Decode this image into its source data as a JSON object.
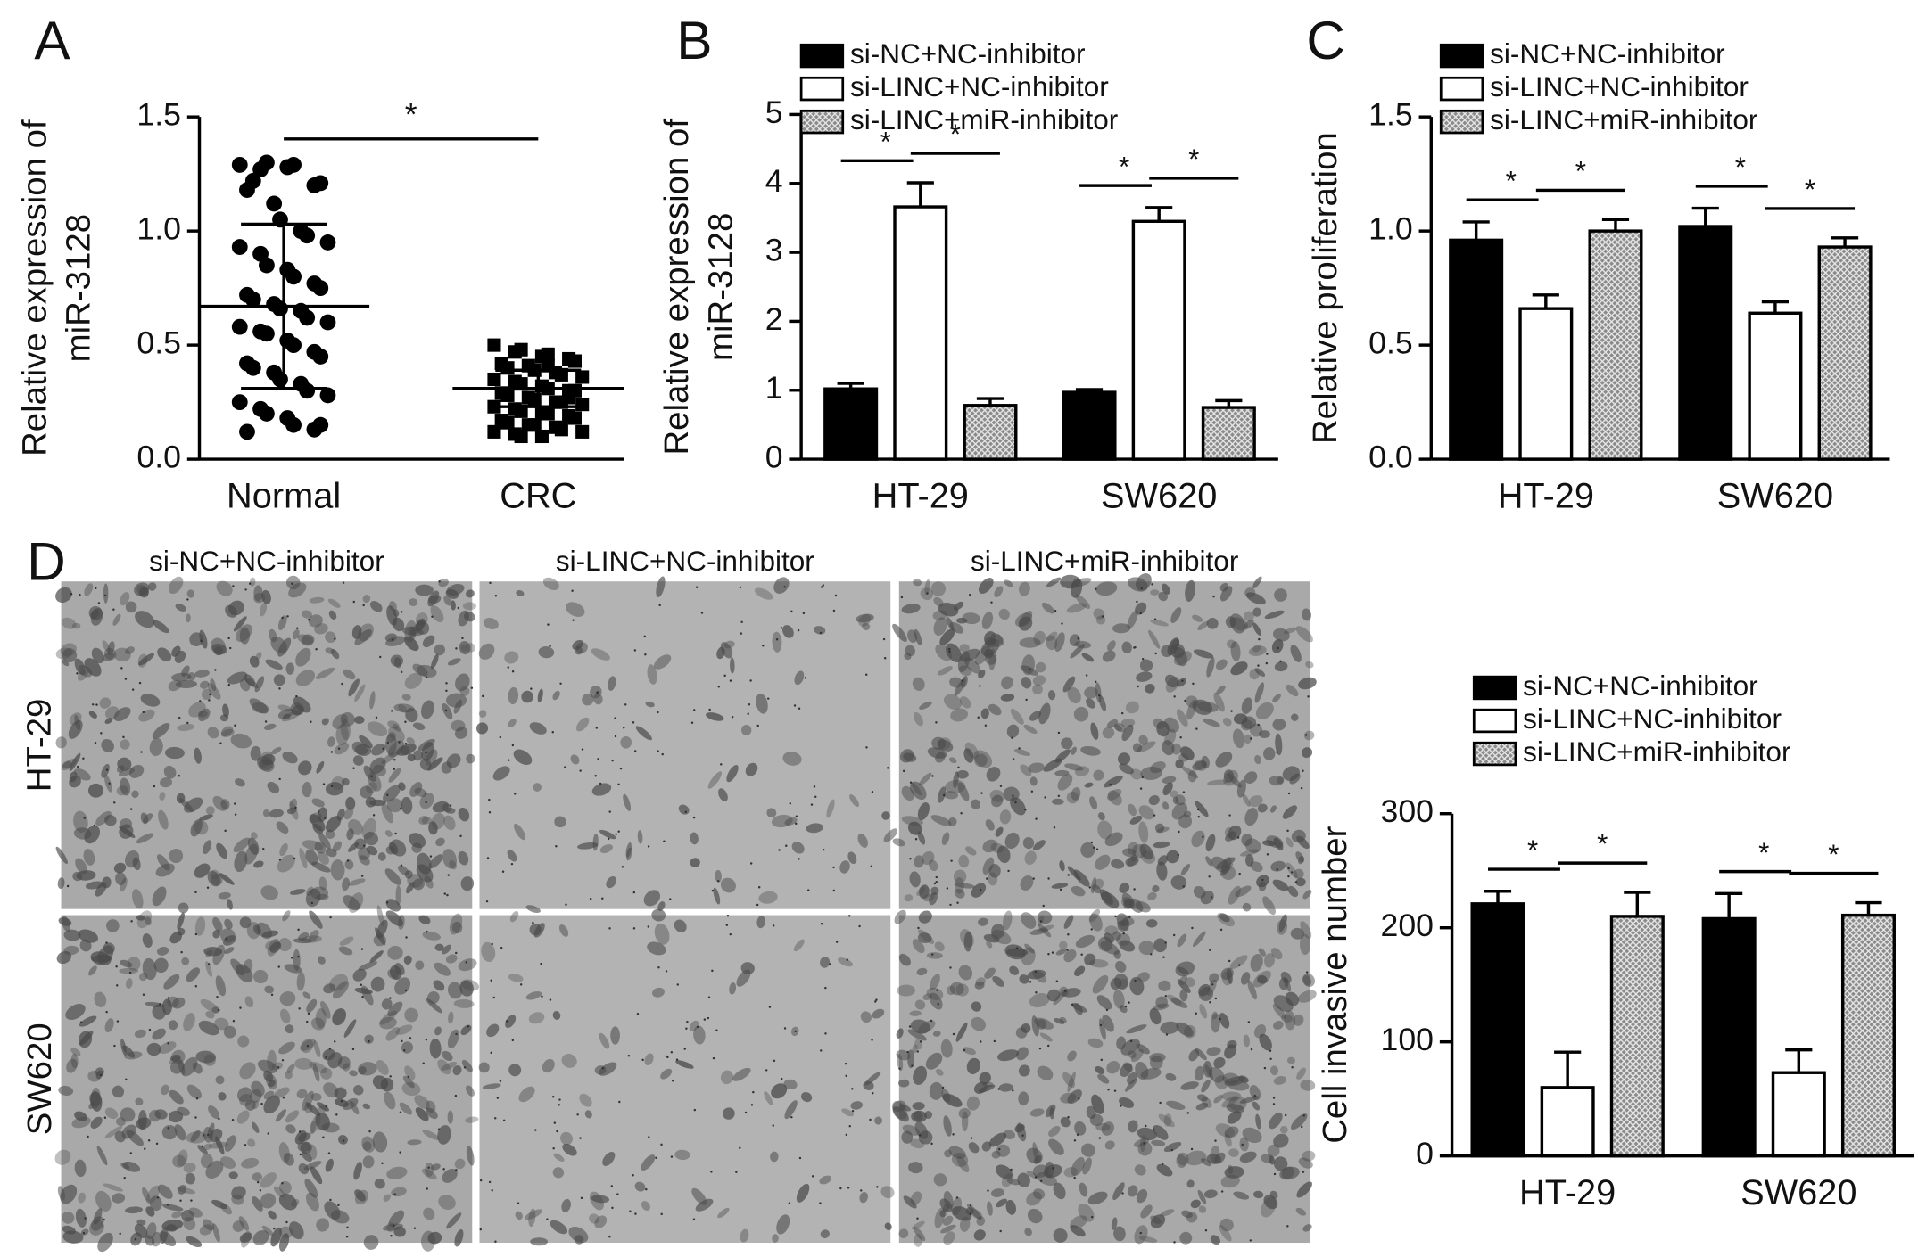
{
  "panel_labels": [
    "A",
    "B",
    "C",
    "D"
  ],
  "micrographs": {
    "columns": [
      "si-NC+NC-inhibitor",
      "si-LINC+NC-inhibitor",
      "si-LINC+miR-inhibitor"
    ],
    "rows": [
      "HT-29",
      "SW620"
    ]
  },
  "chart_data": [
    {
      "type": "dot_plot",
      "ylabel": [
        "Relative expression of",
        "miR-3128"
      ],
      "categories": [
        "Normal",
        "CRC"
      ],
      "markers": [
        "circle",
        "square"
      ],
      "color": "#000000",
      "values": [
        [
          1.29,
          1.27,
          1.3,
          1.28,
          1.29,
          1.2,
          1.21,
          1.18,
          1.22,
          1.12,
          1.05,
          1.0,
          0.98,
          0.95,
          0.93,
          0.9,
          0.85,
          0.83,
          0.8,
          0.77,
          0.75,
          0.72,
          0.7,
          0.68,
          0.66,
          0.65,
          0.62,
          0.6,
          0.58,
          0.56,
          0.55,
          0.52,
          0.5,
          0.47,
          0.45,
          0.42,
          0.4,
          0.38,
          0.35,
          0.33,
          0.3,
          0.28,
          0.25,
          0.22,
          0.2,
          0.18,
          0.15,
          0.13,
          0.15,
          0.12
        ],
        [
          0.5,
          0.47,
          0.48,
          0.45,
          0.46,
          0.44,
          0.43,
          0.42,
          0.4,
          0.41,
          0.39,
          0.38,
          0.37,
          0.36,
          0.35,
          0.34,
          0.33,
          0.32,
          0.31,
          0.3,
          0.3,
          0.29,
          0.28,
          0.27,
          0.26,
          0.25,
          0.25,
          0.24,
          0.23,
          0.22,
          0.21,
          0.2,
          0.2,
          0.19,
          0.18,
          0.17,
          0.16,
          0.15,
          0.15,
          0.14,
          0.13,
          0.12,
          0.12,
          0.11,
          0.1,
          0.1,
          0.41,
          0.27
        ]
      ],
      "mean": [
        0.67,
        0.31
      ],
      "sd": [
        0.36,
        0.08
      ],
      "ylim": [
        0,
        1.5
      ],
      "yticks": [
        {
          "value": 0,
          "label": "0.0"
        },
        {
          "value": 0.5,
          "label": "0.5"
        },
        {
          "value": 1,
          "label": "1.0"
        },
        {
          "value": 1.5,
          "label": "1.5"
        }
      ],
      "significance": [
        "*"
      ]
    },
    {
      "type": "bar",
      "ylabel": [
        "Relative expression of",
        "miR-3128"
      ],
      "categories": [
        "HT-29",
        "SW620"
      ],
      "series": [
        {
          "name": "si-NC+NC-inhibitor",
          "color": "#000000",
          "values": [
            1.02,
            0.97
          ],
          "errors": [
            0.08,
            0.04
          ]
        },
        {
          "name": "si-LINC+NC-inhibitor",
          "color": "#ffffff",
          "values": [
            3.66,
            3.45
          ],
          "errors": [
            0.35,
            0.2
          ]
        },
        {
          "name": "si-LINC+miR-inhibitor",
          "color": "#8a8a8a",
          "hatch": true,
          "values": [
            0.78,
            0.75
          ],
          "errors": [
            0.1,
            0.1
          ]
        }
      ],
      "ylim": [
        0,
        5
      ],
      "yticks": [
        0,
        1,
        2,
        3,
        4,
        5
      ],
      "significance": [
        "*",
        "*",
        "*",
        "*"
      ]
    },
    {
      "type": "bar",
      "ylabel": [
        "Relative proliferation"
      ],
      "categories": [
        "HT-29",
        "SW620"
      ],
      "series": [
        {
          "name": "si-NC+NC-inhibitor",
          "color": "#000000",
          "values": [
            0.96,
            1.02
          ],
          "errors": [
            0.08,
            0.08
          ]
        },
        {
          "name": "si-LINC+NC-inhibitor",
          "color": "#ffffff",
          "values": [
            0.66,
            0.64
          ],
          "errors": [
            0.06,
            0.05
          ]
        },
        {
          "name": "si-LINC+miR-inhibitor",
          "color": "#8a8a8a",
          "hatch": true,
          "values": [
            1.0,
            0.93
          ],
          "errors": [
            0.05,
            0.04
          ]
        }
      ],
      "ylim": [
        0,
        1.5
      ],
      "yticks": [
        {
          "value": 0,
          "label": "0.0"
        },
        {
          "value": 0.5,
          "label": "0.5"
        },
        {
          "value": 1,
          "label": "1.0"
        },
        {
          "value": 1.5,
          "label": "1.5"
        }
      ],
      "significance": [
        "*",
        "*",
        "*",
        "*"
      ]
    },
    {
      "type": "bar",
      "ylabel": [
        "Cell invasive number"
      ],
      "categories": [
        "HT-29",
        "SW620"
      ],
      "series": [
        {
          "name": "si-NC+NC-inhibitor",
          "color": "#000000",
          "values": [
            221,
            208
          ],
          "errors": [
            11,
            22
          ]
        },
        {
          "name": "si-LINC+NC-inhibitor",
          "color": "#ffffff",
          "values": [
            60,
            73
          ],
          "errors": [
            31,
            20
          ]
        },
        {
          "name": "si-LINC+miR-inhibitor",
          "color": "#8a8a8a",
          "hatch": true,
          "values": [
            210,
            211
          ],
          "errors": [
            21,
            11
          ]
        }
      ],
      "ylim": [
        0,
        300
      ],
      "yticks": [
        0,
        100,
        200,
        300
      ],
      "significance": [
        "*",
        "*",
        "*",
        "*"
      ]
    }
  ]
}
